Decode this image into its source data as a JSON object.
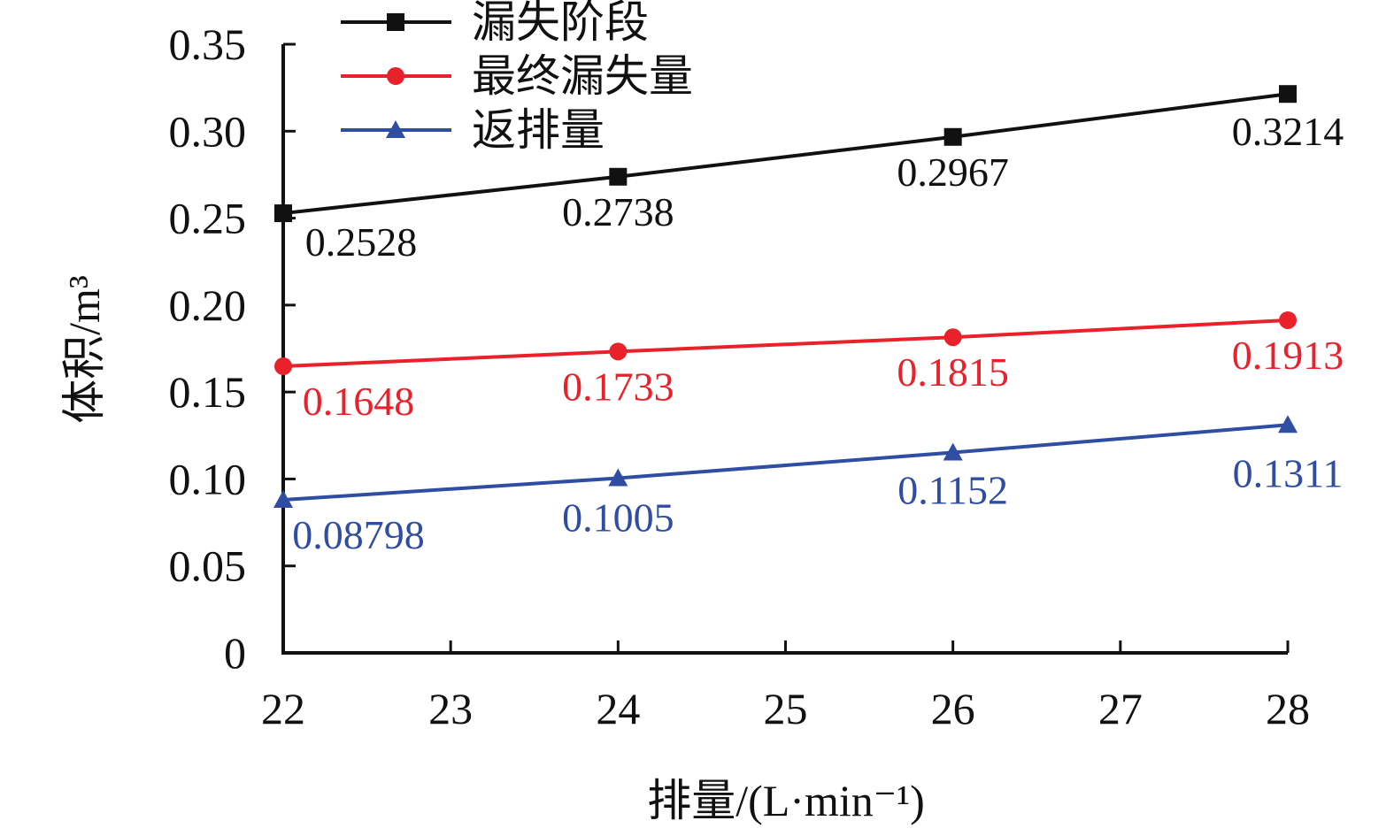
{
  "chart_data": {
    "type": "line",
    "x": [
      22,
      24,
      26,
      28
    ],
    "xticks": [
      "22",
      "23",
      "24",
      "25",
      "26",
      "27",
      "28"
    ],
    "xlim": [
      22,
      28
    ],
    "yticks": [
      "0",
      "0.05",
      "0.10",
      "0.15",
      "0.20",
      "0.25",
      "0.30",
      "0.35"
    ],
    "ylim": [
      0,
      0.35
    ],
    "xlabel": "排量/(L·min⁻¹)",
    "ylabel": "体积/m³",
    "legend_position": "top-left",
    "grid": false,
    "series": [
      {
        "name": "漏失阶段",
        "color": "#111111",
        "marker": "square",
        "values": [
          0.2528,
          0.2738,
          0.2967,
          0.3214
        ],
        "labels": [
          "0.2528",
          "0.2738",
          "0.2967",
          "0.3214"
        ]
      },
      {
        "name": "最终漏失量",
        "color": "#e8212b",
        "marker": "circle",
        "values": [
          0.1648,
          0.1733,
          0.1815,
          0.1913
        ],
        "labels": [
          "0.1648",
          "0.1733",
          "0.1815",
          "0.1913"
        ]
      },
      {
        "name": "返排量",
        "color": "#2f4da2",
        "marker": "triangle",
        "values": [
          0.08798,
          0.1005,
          0.1152,
          0.1311
        ],
        "labels": [
          "0.08798",
          "0.1005",
          "0.1152",
          "0.1311"
        ]
      }
    ]
  }
}
